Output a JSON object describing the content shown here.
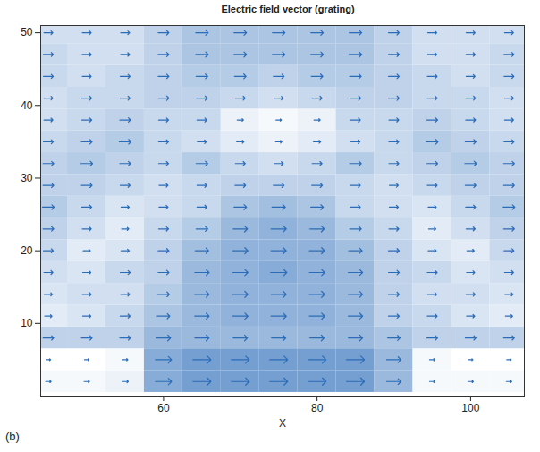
{
  "chart_data": {
    "type": "vector_field",
    "title": "Electric field vector (grating)",
    "x_label": "X",
    "panel_label": "(b)",
    "color": "#2b6cb8",
    "x": [
      45,
      50,
      55,
      60,
      65,
      70,
      75,
      80,
      85,
      90,
      95,
      100,
      105
    ],
    "y": [
      2,
      5,
      8,
      11,
      14,
      17,
      20,
      23,
      26,
      29,
      32,
      35,
      38,
      41,
      44,
      47,
      50
    ],
    "magnitude": [
      [
        0.3,
        0.3,
        0.35,
        0.9,
        1,
        1,
        1,
        1,
        1,
        0.8,
        0.3,
        0.3,
        0.3
      ],
      [
        0.25,
        0.25,
        0.3,
        0.9,
        1,
        1,
        1,
        1,
        1,
        0.8,
        0.3,
        0.25,
        0.25
      ],
      [
        0.6,
        0.6,
        0.6,
        0.8,
        0.8,
        0.8,
        0.8,
        0.8,
        0.8,
        0.7,
        0.6,
        0.6,
        0.6
      ],
      [
        0.4,
        0.45,
        0.55,
        0.7,
        0.8,
        0.85,
        0.85,
        0.85,
        0.8,
        0.6,
        0.55,
        0.45,
        0.4
      ],
      [
        0.45,
        0.5,
        0.5,
        0.65,
        0.8,
        0.85,
        0.85,
        0.85,
        0.8,
        0.6,
        0.5,
        0.5,
        0.45
      ],
      [
        0.5,
        0.45,
        0.55,
        0.6,
        0.8,
        0.85,
        0.9,
        0.85,
        0.8,
        0.6,
        0.55,
        0.45,
        0.5
      ],
      [
        0.55,
        0.4,
        0.45,
        0.6,
        0.75,
        0.85,
        0.85,
        0.85,
        0.75,
        0.6,
        0.45,
        0.4,
        0.55
      ],
      [
        0.6,
        0.5,
        0.4,
        0.55,
        0.65,
        0.8,
        0.85,
        0.8,
        0.65,
        0.55,
        0.4,
        0.5,
        0.6
      ],
      [
        0.65,
        0.55,
        0.45,
        0.5,
        0.55,
        0.7,
        0.75,
        0.7,
        0.55,
        0.5,
        0.45,
        0.55,
        0.65
      ],
      [
        0.6,
        0.6,
        0.55,
        0.5,
        0.55,
        0.6,
        0.6,
        0.6,
        0.55,
        0.5,
        0.55,
        0.6,
        0.6
      ],
      [
        0.6,
        0.65,
        0.6,
        0.55,
        0.65,
        0.55,
        0.5,
        0.55,
        0.65,
        0.55,
        0.6,
        0.65,
        0.6
      ],
      [
        0.55,
        0.6,
        0.65,
        0.55,
        0.5,
        0.4,
        0.35,
        0.4,
        0.5,
        0.55,
        0.65,
        0.6,
        0.55
      ],
      [
        0.5,
        0.55,
        0.6,
        0.55,
        0.55,
        0.35,
        0.3,
        0.35,
        0.55,
        0.55,
        0.6,
        0.55,
        0.5
      ],
      [
        0.5,
        0.55,
        0.55,
        0.6,
        0.6,
        0.55,
        0.5,
        0.55,
        0.6,
        0.6,
        0.55,
        0.55,
        0.5
      ],
      [
        0.55,
        0.5,
        0.55,
        0.6,
        0.65,
        0.65,
        0.6,
        0.65,
        0.65,
        0.6,
        0.55,
        0.5,
        0.55
      ],
      [
        0.55,
        0.5,
        0.5,
        0.6,
        0.7,
        0.7,
        0.7,
        0.7,
        0.7,
        0.6,
        0.5,
        0.5,
        0.55
      ],
      [
        0.5,
        0.5,
        0.5,
        0.6,
        0.7,
        0.7,
        0.7,
        0.7,
        0.7,
        0.6,
        0.5,
        0.5,
        0.5
      ]
    ],
    "xlim": [
      44,
      107
    ],
    "xticks": [
      60,
      80,
      100
    ],
    "ylim": [
      0,
      51
    ],
    "yticks": [
      10,
      20,
      30,
      40,
      50
    ],
    "grid": false
  }
}
